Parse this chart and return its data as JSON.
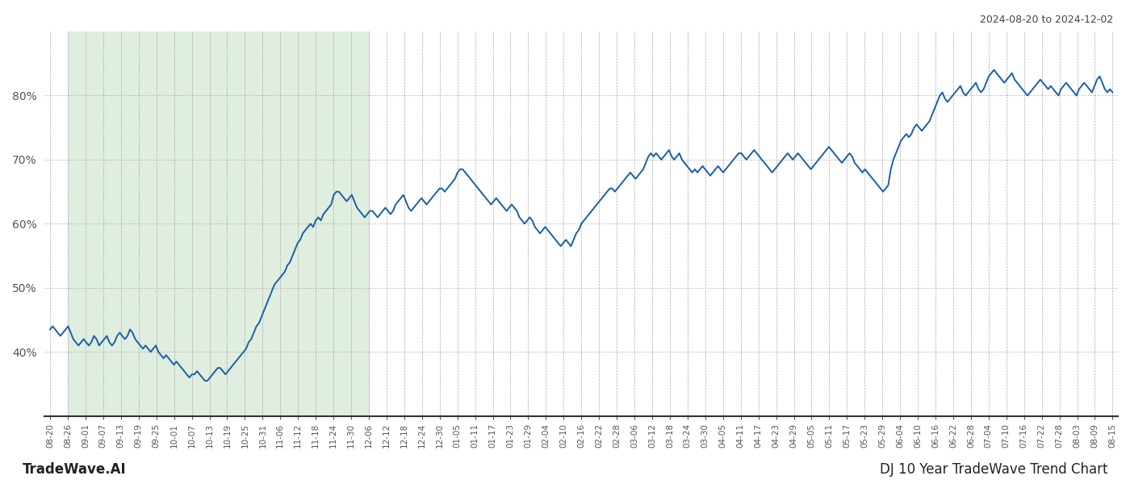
{
  "title_top_right": "2024-08-20 to 2024-12-02",
  "footer_left": "TradeWave.AI",
  "footer_right": "DJ 10 Year TradeWave Trend Chart",
  "shade_start_label": "08-26",
  "shade_end_label": "12-06",
  "shade_color": "#d4e8d4",
  "shade_alpha": 0.7,
  "line_color": "#1a5fa8",
  "line_width": 1.4,
  "background_color": "#ffffff",
  "ylim": [
    30,
    90
  ],
  "yticks": [
    40,
    50,
    60,
    70,
    80
  ],
  "x_labels": [
    "08-20",
    "08-26",
    "09-01",
    "09-07",
    "09-13",
    "09-19",
    "09-25",
    "10-01",
    "10-07",
    "10-13",
    "10-19",
    "10-25",
    "10-31",
    "11-06",
    "11-12",
    "11-18",
    "11-24",
    "11-30",
    "12-06",
    "12-12",
    "12-18",
    "12-24",
    "12-30",
    "01-05",
    "01-11",
    "01-17",
    "01-23",
    "01-29",
    "02-04",
    "02-10",
    "02-16",
    "02-22",
    "02-28",
    "03-06",
    "03-12",
    "03-18",
    "03-24",
    "03-30",
    "04-05",
    "04-11",
    "04-17",
    "04-23",
    "04-29",
    "05-05",
    "05-11",
    "05-17",
    "05-23",
    "05-29",
    "06-04",
    "06-10",
    "06-16",
    "06-22",
    "06-28",
    "07-04",
    "07-10",
    "07-16",
    "07-22",
    "07-28",
    "08-03",
    "08-09",
    "08-15"
  ],
  "y_values": [
    43.5,
    44.0,
    43.5,
    43.0,
    42.5,
    43.0,
    43.5,
    44.0,
    43.0,
    42.0,
    41.5,
    41.0,
    41.5,
    42.0,
    41.5,
    41.0,
    41.5,
    42.5,
    42.0,
    41.0,
    41.5,
    42.0,
    42.5,
    41.5,
    41.0,
    41.5,
    42.5,
    43.0,
    42.5,
    42.0,
    42.5,
    43.5,
    43.0,
    42.0,
    41.5,
    41.0,
    40.5,
    41.0,
    40.5,
    40.0,
    40.5,
    41.0,
    40.0,
    39.5,
    39.0,
    39.5,
    39.0,
    38.5,
    38.0,
    38.5,
    38.0,
    37.5,
    37.0,
    36.5,
    36.0,
    36.5,
    36.5,
    37.0,
    36.5,
    36.0,
    35.5,
    35.5,
    36.0,
    36.5,
    37.0,
    37.5,
    37.5,
    37.0,
    36.5,
    37.0,
    37.5,
    38.0,
    38.5,
    39.0,
    39.5,
    40.0,
    40.5,
    41.5,
    42.0,
    43.0,
    44.0,
    44.5,
    45.5,
    46.5,
    47.5,
    48.5,
    49.5,
    50.5,
    51.0,
    51.5,
    52.0,
    52.5,
    53.5,
    54.0,
    55.0,
    56.0,
    57.0,
    57.5,
    58.5,
    59.0,
    59.5,
    60.0,
    59.5,
    60.5,
    61.0,
    60.5,
    61.5,
    62.0,
    62.5,
    63.0,
    64.5,
    65.0,
    65.0,
    64.5,
    64.0,
    63.5,
    64.0,
    64.5,
    63.5,
    62.5,
    62.0,
    61.5,
    61.0,
    61.5,
    62.0,
    62.0,
    61.5,
    61.0,
    61.5,
    62.0,
    62.5,
    62.0,
    61.5,
    62.0,
    63.0,
    63.5,
    64.0,
    64.5,
    63.5,
    62.5,
    62.0,
    62.5,
    63.0,
    63.5,
    64.0,
    63.5,
    63.0,
    63.5,
    64.0,
    64.5,
    65.0,
    65.5,
    65.5,
    65.0,
    65.5,
    66.0,
    66.5,
    67.0,
    68.0,
    68.5,
    68.5,
    68.0,
    67.5,
    67.0,
    66.5,
    66.0,
    65.5,
    65.0,
    64.5,
    64.0,
    63.5,
    63.0,
    63.5,
    64.0,
    63.5,
    63.0,
    62.5,
    62.0,
    62.5,
    63.0,
    62.5,
    62.0,
    61.0,
    60.5,
    60.0,
    60.5,
    61.0,
    60.5,
    59.5,
    59.0,
    58.5,
    59.0,
    59.5,
    59.0,
    58.5,
    58.0,
    57.5,
    57.0,
    56.5,
    57.0,
    57.5,
    57.0,
    56.5,
    57.5,
    58.5,
    59.0,
    60.0,
    60.5,
    61.0,
    61.5,
    62.0,
    62.5,
    63.0,
    63.5,
    64.0,
    64.5,
    65.0,
    65.5,
    65.5,
    65.0,
    65.5,
    66.0,
    66.5,
    67.0,
    67.5,
    68.0,
    67.5,
    67.0,
    67.5,
    68.0,
    68.5,
    69.5,
    70.5,
    71.0,
    70.5,
    71.0,
    70.5,
    70.0,
    70.5,
    71.0,
    71.5,
    70.5,
    70.0,
    70.5,
    71.0,
    70.0,
    69.5,
    69.0,
    68.5,
    68.0,
    68.5,
    68.0,
    68.5,
    69.0,
    68.5,
    68.0,
    67.5,
    68.0,
    68.5,
    69.0,
    68.5,
    68.0,
    68.5,
    69.0,
    69.5,
    70.0,
    70.5,
    71.0,
    71.0,
    70.5,
    70.0,
    70.5,
    71.0,
    71.5,
    71.0,
    70.5,
    70.0,
    69.5,
    69.0,
    68.5,
    68.0,
    68.5,
    69.0,
    69.5,
    70.0,
    70.5,
    71.0,
    70.5,
    70.0,
    70.5,
    71.0,
    70.5,
    70.0,
    69.5,
    69.0,
    68.5,
    69.0,
    69.5,
    70.0,
    70.5,
    71.0,
    71.5,
    72.0,
    71.5,
    71.0,
    70.5,
    70.0,
    69.5,
    70.0,
    70.5,
    71.0,
    70.5,
    69.5,
    69.0,
    68.5,
    68.0,
    68.5,
    68.0,
    67.5,
    67.0,
    66.5,
    66.0,
    65.5,
    65.0,
    65.5,
    66.0,
    68.5,
    70.0,
    71.0,
    72.0,
    73.0,
    73.5,
    74.0,
    73.5,
    74.0,
    75.0,
    75.5,
    75.0,
    74.5,
    75.0,
    75.5,
    76.0,
    77.0,
    78.0,
    79.0,
    80.0,
    80.5,
    79.5,
    79.0,
    79.5,
    80.0,
    80.5,
    81.0,
    81.5,
    80.5,
    80.0,
    80.5,
    81.0,
    81.5,
    82.0,
    81.0,
    80.5,
    81.0,
    82.0,
    83.0,
    83.5,
    84.0,
    83.5,
    83.0,
    82.5,
    82.0,
    82.5,
    83.0,
    83.5,
    82.5,
    82.0,
    81.5,
    81.0,
    80.5,
    80.0,
    80.5,
    81.0,
    81.5,
    82.0,
    82.5,
    82.0,
    81.5,
    81.0,
    81.5,
    81.0,
    80.5,
    80.0,
    81.0,
    81.5,
    82.0,
    81.5,
    81.0,
    80.5,
    80.0,
    81.0,
    81.5,
    82.0,
    81.5,
    81.0,
    80.5,
    81.5,
    82.5,
    83.0,
    82.0,
    81.0,
    80.5,
    81.0,
    80.5
  ]
}
